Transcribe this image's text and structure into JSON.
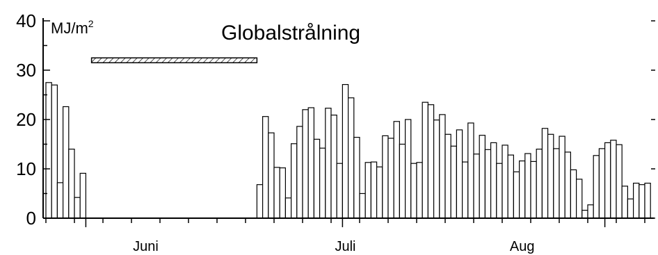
{
  "chart_data": {
    "type": "bar",
    "title": "Globalstrålning",
    "ylabel": "MJ/m",
    "ylabel_sup": "2",
    "ylim": [
      0,
      40
    ],
    "yticks": [
      "0",
      "10",
      "20",
      "30",
      "40"
    ],
    "xtick_labels": [
      "Juni",
      "Juli",
      "Aug"
    ],
    "grid": false,
    "legend": "none",
    "colors": {
      "bar_fill": "#ffffff",
      "stroke": "#000000"
    },
    "period_bar": {
      "y": 32,
      "pattern": "hatched",
      "start_day": 8,
      "end_day": 37
    },
    "values": [
      27.5,
      27,
      7.2,
      22.6,
      14,
      4.2,
      9.1,
      null,
      null,
      null,
      null,
      null,
      null,
      null,
      null,
      null,
      null,
      null,
      null,
      null,
      null,
      null,
      null,
      null,
      null,
      null,
      null,
      null,
      null,
      null,
      null,
      null,
      null,
      null,
      null,
      null,
      null,
      6.8,
      20.6,
      17.3,
      10.3,
      10.2,
      4.1,
      15.1,
      18.6,
      22,
      22.4,
      16,
      14.2,
      22.3,
      20.9,
      11.1,
      27.1,
      24.4,
      16.4,
      5,
      11.3,
      11.4,
      10.4,
      16.7,
      16.2,
      19.6,
      15,
      20,
      11.1,
      11.3,
      23.5,
      23,
      19.9,
      21,
      17,
      14.6,
      17.9,
      11.4,
      19.3,
      13,
      16.8,
      13.9,
      15.3,
      11.1,
      14.8,
      12.8,
      9.4,
      11.6,
      13.1,
      11.5,
      14,
      18.2,
      17,
      14.1,
      16.6,
      13.4,
      9.8,
      7.9,
      1.6,
      2.7,
      12.7,
      14.1,
      15.3,
      15.8,
      14.9,
      6.5,
      3.9,
      7.1,
      6.8,
      7.1
    ]
  }
}
